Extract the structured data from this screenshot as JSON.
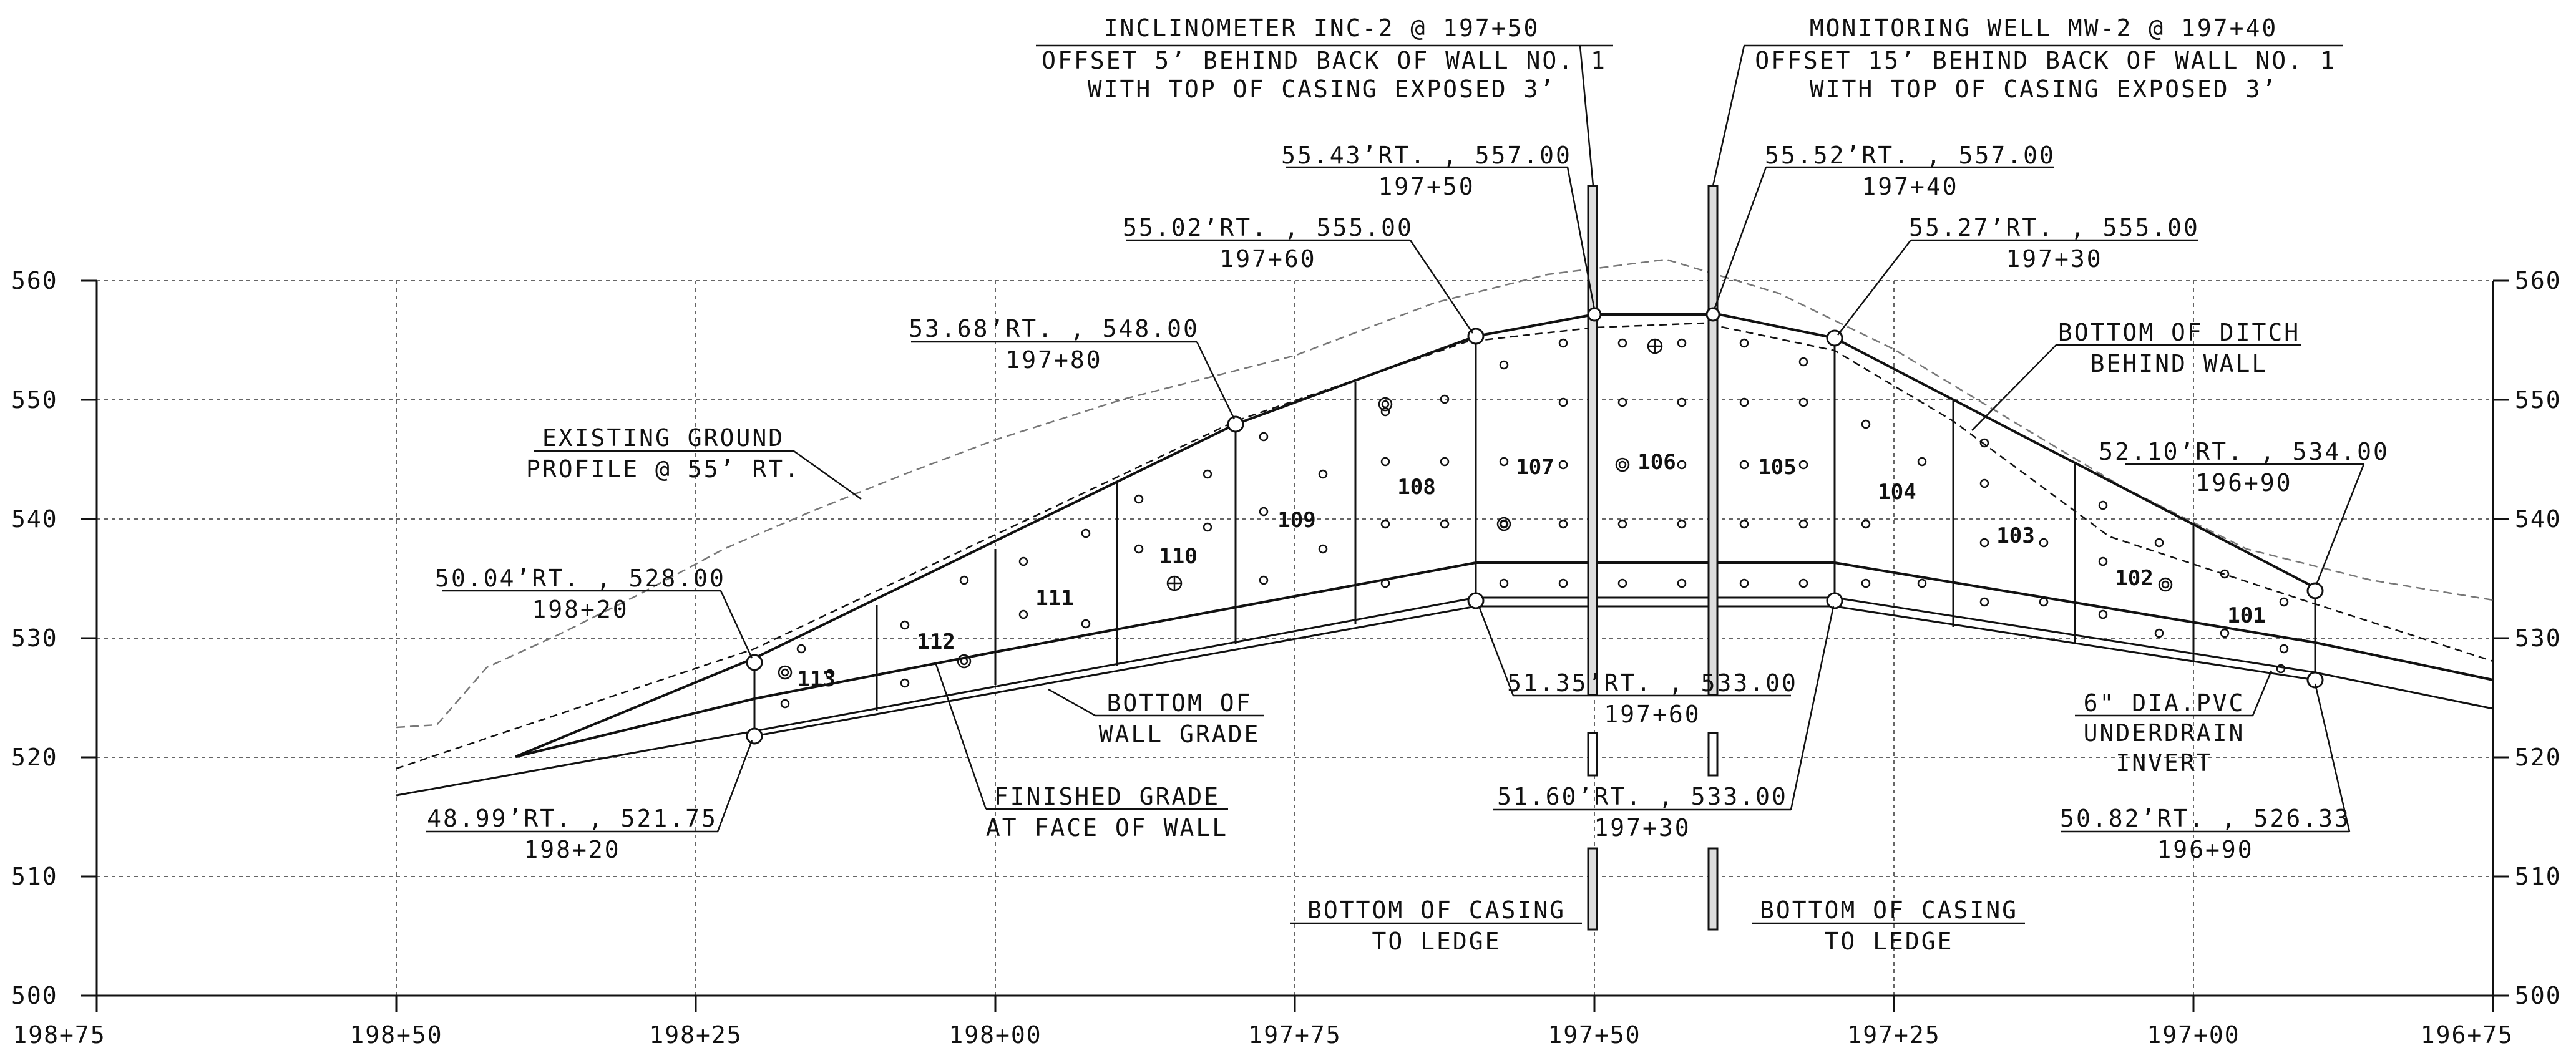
{
  "axes": {
    "x_ticks": [
      "198+75",
      "198+50",
      "198+25",
      "198+00",
      "197+75",
      "197+50",
      "197+25",
      "197+00",
      "196+75"
    ],
    "y_ticks": [
      "560",
      "550",
      "540",
      "530",
      "520",
      "510",
      "500"
    ]
  },
  "callouts": {
    "inclinometer": [
      "INCLINOMETER INC-2 @ 197+50",
      "OFFSET 5’ BEHIND BACK OF WALL NO. 1",
      "WITH TOP OF CASING EXPOSED 3’"
    ],
    "monitoring_well": [
      "MONITORING WELL MW-2 @ 197+40",
      "OFFSET 15’ BEHIND BACK OF WALL NO. 1",
      "WITH TOP OF CASING EXPOSED 3’"
    ],
    "existing_ground": [
      "EXISTING GROUND",
      "PROFILE @ 55’ RT."
    ],
    "bottom_ditch": [
      "BOTTOM OF DITCH",
      "BEHIND WALL"
    ],
    "bottom_wall_grade": [
      "BOTTOM OF",
      "WALL GRADE"
    ],
    "finished_grade": [
      "FINISHED GRADE",
      "AT FACE OF WALL"
    ],
    "underdrain": [
      "6\" DIA.PVC",
      "UNDERDRAIN",
      "INVERT"
    ],
    "casing_left": [
      "BOTTOM OF CASING",
      "TO LEDGE"
    ],
    "casing_right": [
      "BOTTOM OF CASING",
      "TO LEDGE"
    ]
  },
  "points": {
    "p1": [
      "55.43’RT. , 557.00",
      "197+50"
    ],
    "p2": [
      "55.52’RT. , 557.00",
      "197+40"
    ],
    "p3": [
      "55.02’RT. , 555.00",
      "197+60"
    ],
    "p4": [
      "55.27’RT. , 555.00",
      "197+30"
    ],
    "p5": [
      "53.68’RT. , 548.00",
      "197+80"
    ],
    "p6": [
      "52.10’RT. , 534.00",
      "196+90"
    ],
    "p7": [
      "50.04’RT. , 528.00",
      "198+20"
    ],
    "p8": [
      "51.35’RT. , 533.00",
      "197+60"
    ],
    "p9": [
      "51.60’RT. , 533.00",
      "197+30"
    ],
    "p10": [
      "48.99’RT. , 521.75",
      "198+20"
    ],
    "p11": [
      "50.82’RT. , 526.33",
      "196+90"
    ]
  },
  "panels": [
    "101",
    "102",
    "103",
    "104",
    "105",
    "106",
    "107",
    "108",
    "109",
    "110",
    "111",
    "112",
    "113"
  ]
}
